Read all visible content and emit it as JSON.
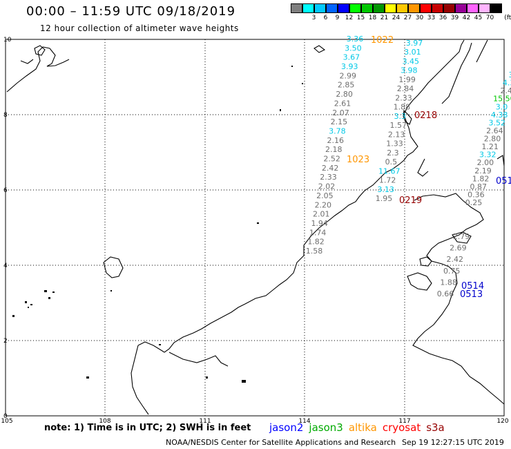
{
  "header": {
    "title": "00:00 – 11:59 UTC 09/18/2019",
    "subtitle": "12 hour collection of altimeter wave heights"
  },
  "legend": {
    "unit": "(ft)",
    "swatches": [
      {
        "color": "#7f7f7f",
        "label": ""
      },
      {
        "color": "#00ffff",
        "label": "3"
      },
      {
        "color": "#00c8ff",
        "label": "6"
      },
      {
        "color": "#0064ff",
        "label": "9"
      },
      {
        "color": "#0000ff",
        "label": "12"
      },
      {
        "color": "#00ff00",
        "label": "15"
      },
      {
        "color": "#00c800",
        "label": "18"
      },
      {
        "color": "#009600",
        "label": "21"
      },
      {
        "color": "#ffff00",
        "label": "24"
      },
      {
        "color": "#ffc800",
        "label": "27"
      },
      {
        "color": "#ff9600",
        "label": "30"
      },
      {
        "color": "#ff0000",
        "label": "33"
      },
      {
        "color": "#c80000",
        "label": "36"
      },
      {
        "color": "#960000",
        "label": "39"
      },
      {
        "color": "#960096",
        "label": "42"
      },
      {
        "color": "#ff64ff",
        "label": "45"
      },
      {
        "color": "#ffb4ff",
        "label": "70"
      },
      {
        "color": "#000000",
        "label": ""
      }
    ]
  },
  "axes": {
    "x_ticks": [
      "105",
      "108",
      "111",
      "114",
      "117",
      "120"
    ],
    "y_ticks": [
      "10",
      "8",
      "6",
      "4",
      "2",
      "0"
    ]
  },
  "pass_times": [
    {
      "text": "1022",
      "color": "#ff9600"
    },
    {
      "text": "1023",
      "color": "#ff9600"
    },
    {
      "text": "0218",
      "color": "#960000"
    },
    {
      "text": "0219",
      "color": "#960000"
    },
    {
      "text": "0514",
      "color": "#0000cc"
    },
    {
      "text": "0513",
      "color": "#0000cc"
    },
    {
      "text": "051",
      "color": "#0000cc"
    }
  ],
  "tracks": {
    "track_a": [
      "3.36",
      "3.50",
      "3.67",
      "3.93",
      "2.99",
      "2.85",
      "2.80",
      "2.61",
      "2.07",
      "2.15",
      "3.78",
      "2.16",
      "2.18",
      "2.52",
      "2.42",
      "2.33",
      "2.02",
      "2.05",
      "2.20",
      "2.01",
      "1.94",
      "1.74",
      "1.82",
      "1.58"
    ],
    "track_b": [
      "3.97",
      "3.01",
      "3.45",
      "3.98",
      "1.99",
      "2.84",
      "2.33",
      "1.88",
      "3.3",
      "1.57",
      "2.13",
      "1.33",
      "2.3",
      "0.5",
      "11.67",
      "1.72",
      "3.13",
      "1.95"
    ],
    "track_c": [
      "2.79",
      "2.69",
      "2.42",
      "0.75",
      "1.88",
      "0.66"
    ],
    "track_d": [
      "3",
      "4.3",
      "2.4",
      "15.50",
      "3.0",
      "4.38",
      "3.52",
      "2.64",
      "2.80",
      "1.21",
      "3.32",
      "2.00",
      "2.19",
      "1.82",
      "0.87",
      "0.36",
      "0.25"
    ]
  },
  "footer": {
    "note": "note:  1) Time is in UTC;  2) SWH is in feet",
    "satellites": [
      {
        "name": "jason2",
        "color": "#0000ff"
      },
      {
        "name": "jason3",
        "color": "#00aa00"
      },
      {
        "name": "altika",
        "color": "#ff9600"
      },
      {
        "name": "cryosat",
        "color": "#ff0000"
      },
      {
        "name": "s3a",
        "color": "#960000"
      }
    ],
    "credit": "NOAA/NESDIS Center for Satellite Applications and Research",
    "timestamp": "Sep 19 12:27:15 UTC 2019"
  }
}
